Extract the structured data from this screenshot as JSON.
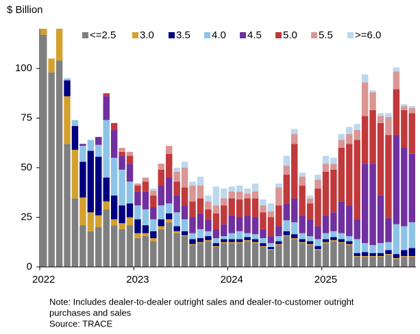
{
  "chart_data": {
    "type": "stacked_bar",
    "y_label": "$ Billion",
    "legend": "top",
    "categories": [
      "2022",
      null,
      null,
      null,
      null,
      null,
      null,
      null,
      null,
      null,
      null,
      null,
      "2023",
      null,
      null,
      null,
      null,
      null,
      null,
      null,
      null,
      null,
      null,
      null,
      "2024",
      null,
      null,
      null,
      null,
      null,
      null,
      null,
      null,
      null,
      null,
      null,
      "2025",
      null,
      null,
      null,
      null,
      null,
      null,
      null,
      null,
      null,
      null,
      null
    ],
    "ylim": [
      0,
      120
    ],
    "yticks": [
      0,
      25,
      50,
      75,
      100
    ],
    "series": [
      {
        "name": "<=2.5",
        "color": "#7f7f7f",
        "values": [
          117,
          98,
          104,
          62,
          34.5,
          21,
          18,
          20,
          29,
          21,
          19,
          21,
          14.5,
          15.5,
          13,
          19,
          22.5,
          17,
          15.5,
          11,
          12,
          13,
          10,
          12,
          12,
          12,
          13,
          12,
          10,
          8.5,
          11,
          15.5,
          14,
          12,
          11,
          8.5,
          12,
          13,
          12,
          11,
          5,
          5,
          5,
          5,
          6,
          4,
          5,
          5
        ]
      },
      {
        "name": "3.0",
        "color": "#d4a02e",
        "values": [
          10,
          7,
          20,
          24,
          24.5,
          14,
          9.5,
          6,
          4,
          3,
          3,
          4,
          2.5,
          1.5,
          1.5,
          1.5,
          1.5,
          1,
          0.5,
          0.5,
          0.5,
          0.5,
          0.5,
          0.5,
          0.5,
          0.5,
          0.5,
          0.5,
          0.5,
          0.5,
          0.5,
          0.5,
          0.5,
          0.5,
          0.5,
          0.5,
          0.5,
          0.5,
          0.5,
          0.5,
          0.5,
          0.5,
          0.5,
          0.5,
          0.5,
          0.5,
          0.5,
          0.5
        ]
      },
      {
        "name": "3.5",
        "color": "#000080",
        "values": [
          0,
          0,
          0,
          8,
          12,
          18,
          31,
          29.5,
          12,
          12,
          9,
          7,
          7,
          4,
          3.5,
          3.5,
          3,
          2.5,
          2,
          2.5,
          2,
          2,
          1.5,
          1.5,
          1.5,
          1.5,
          1.5,
          1.5,
          1.5,
          1,
          1.5,
          2,
          2,
          1.5,
          1.5,
          1.5,
          1.5,
          1.5,
          1.5,
          1.5,
          1.5,
          2,
          1.5,
          1.5,
          2,
          2,
          3,
          4
        ]
      },
      {
        "name": "4.0",
        "color": "#8ec3e8",
        "values": [
          0,
          0,
          0,
          1,
          3,
          8,
          5.5,
          6,
          29,
          19,
          18,
          11,
          7,
          8,
          6,
          7,
          5,
          7,
          6,
          3,
          4.5,
          2.5,
          2.5,
          1.5,
          3,
          4,
          2,
          2.5,
          2.5,
          2,
          2.5,
          5.5,
          6,
          3,
          2.5,
          3.5,
          3,
          3,
          3,
          2.5,
          7,
          4.5,
          4,
          5,
          4,
          15,
          12,
          13
        ]
      },
      {
        "name": "4.5",
        "color": "#7030a0",
        "values": [
          0,
          0,
          0,
          0,
          0,
          1,
          0,
          4,
          12,
          14,
          7,
          9,
          7,
          9,
          6,
          10,
          13,
          8.5,
          7,
          8,
          8,
          6,
          4.5,
          6,
          9,
          7,
          9,
          8.5,
          4.5,
          3.5,
          5,
          8.5,
          12,
          9,
          8.5,
          6.5,
          9,
          9.5,
          16,
          15.5,
          10,
          40,
          41,
          24,
          12,
          45,
          39.5,
          34.5
        ]
      },
      {
        "name": "5.0",
        "color": "#c0393b",
        "values": [
          0,
          0,
          0,
          0,
          0,
          0,
          0,
          0,
          1.5,
          3.5,
          2,
          4,
          3,
          5,
          6,
          8,
          12,
          7,
          9,
          8,
          7.5,
          5,
          8,
          9.5,
          8.5,
          9,
          8.5,
          9.5,
          8.5,
          9.5,
          10.5,
          14.5,
          27.5,
          15,
          8,
          19,
          22,
          21.5,
          27,
          31,
          40,
          24,
          27,
          36.5,
          42,
          23,
          19,
          20.5
        ]
      },
      {
        "name": "5.5",
        "color": "#d99694",
        "values": [
          0,
          0,
          0,
          0,
          0,
          0,
          0,
          0,
          0,
          0,
          2,
          2,
          1,
          2,
          2.5,
          3,
          4,
          5,
          10,
          8,
          6.5,
          4,
          4,
          3.5,
          3.5,
          4,
          2.5,
          3.5,
          3.5,
          3,
          9,
          4.5,
          5,
          4.5,
          2.5,
          4.5,
          4,
          3,
          4,
          5,
          5,
          17,
          9,
          3.5,
          9,
          9,
          2,
          2.5
        ]
      },
      {
        "name": ">=6.0",
        "color": "#bdd7ee",
        "values": [
          0,
          0,
          0,
          0,
          0,
          0,
          0,
          0,
          0,
          0,
          0,
          0,
          0,
          0,
          1,
          0,
          0,
          2,
          3,
          2,
          4.5,
          3,
          9.5,
          5,
          2.5,
          3,
          2.5,
          4,
          3,
          4,
          2,
          5,
          2.5,
          2,
          1.5,
          2.5,
          4,
          3,
          3,
          3.5,
          3,
          4,
          1,
          1.5,
          2,
          2,
          1,
          1
        ]
      }
    ],
    "notes": [
      "Note: Includes dealer-to-dealer outright sales and dealer-to-customer outright",
      "purchases and sales",
      "Source: TRACE"
    ]
  }
}
